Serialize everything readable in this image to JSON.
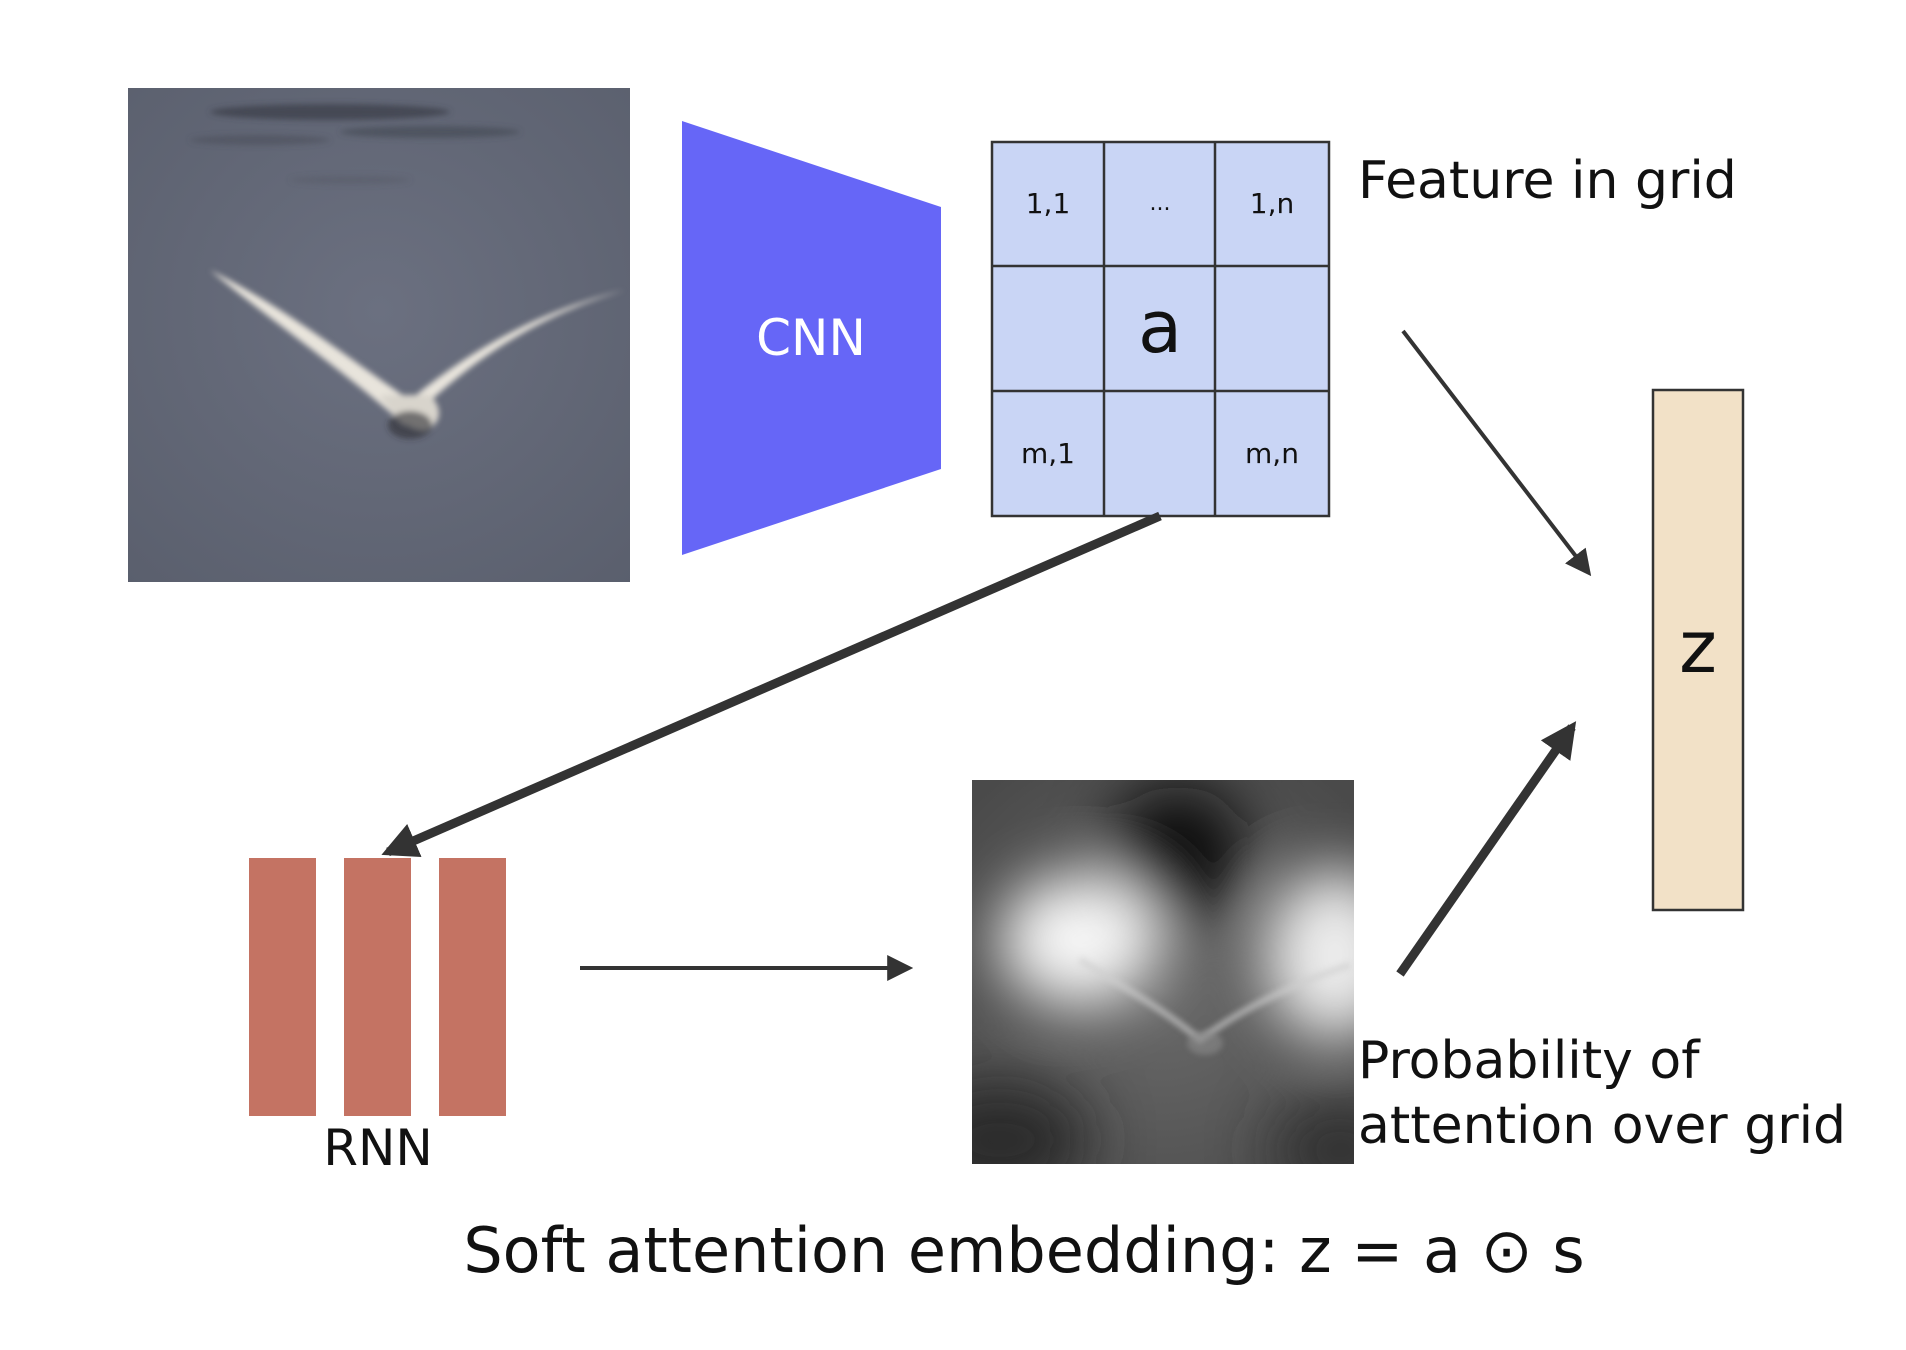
{
  "cnn": {
    "label": "CNN"
  },
  "feature_grid": {
    "caption": "Feature in grid",
    "cells": [
      [
        "1,1",
        "...",
        "1,n"
      ],
      [
        "",
        "a",
        ""
      ],
      [
        "m,1",
        "",
        "m,n"
      ]
    ]
  },
  "z_vector": {
    "label": "z"
  },
  "rnn": {
    "label": "RNN"
  },
  "attention_map": {
    "caption_line1": "Probability of",
    "caption_line2": "attention over grid"
  },
  "footer": {
    "text": "Soft attention embedding: z = a ⊙ s"
  },
  "colors": {
    "cnn_fill": "#6666f7",
    "grid_fill": "#c9d5f5",
    "z_fill": "#f2e1c7",
    "rnn_fill": "#c47363",
    "arrow": "#333333"
  }
}
